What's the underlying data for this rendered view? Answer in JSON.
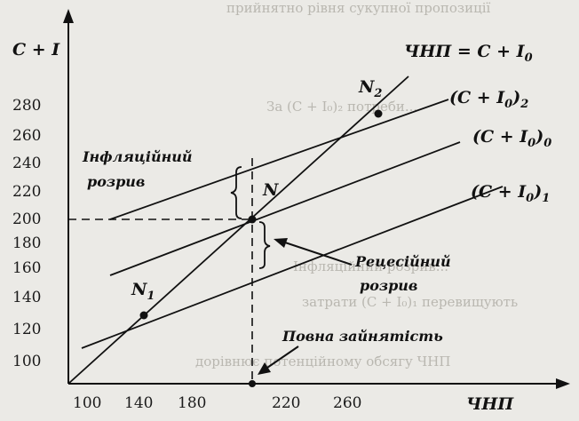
{
  "diagram": {
    "y_axis_label": "C + I",
    "x_axis_label": "ЧНП",
    "y_ticks": [
      "100",
      "120",
      "140",
      "160",
      "180",
      "200",
      "220",
      "240",
      "260",
      "280"
    ],
    "x_ticks": [
      "100",
      "140",
      "180",
      "220",
      "260"
    ],
    "lines": {
      "line45": "ЧНП = C + I",
      "line45_sub": "0",
      "upper": "(C + I",
      "upper_sub": "0",
      "upper_sub2": "2",
      "mid": "(C + I",
      "mid_sub": "0",
      "mid_sub2": "0",
      "low": "(C + I",
      "low_sub": "0",
      "low_sub2": "1"
    },
    "points": {
      "N": "N",
      "N1": "N",
      "N1_sub": "1",
      "N2": "N",
      "N2_sub": "2"
    },
    "annotations": {
      "inflation_line1": "Інфляційний",
      "inflation_line2": "розрив",
      "recession_line1": "Рецесійний",
      "recession_line2": "розрив",
      "full_employment": "Повна зайнятість"
    }
  }
}
